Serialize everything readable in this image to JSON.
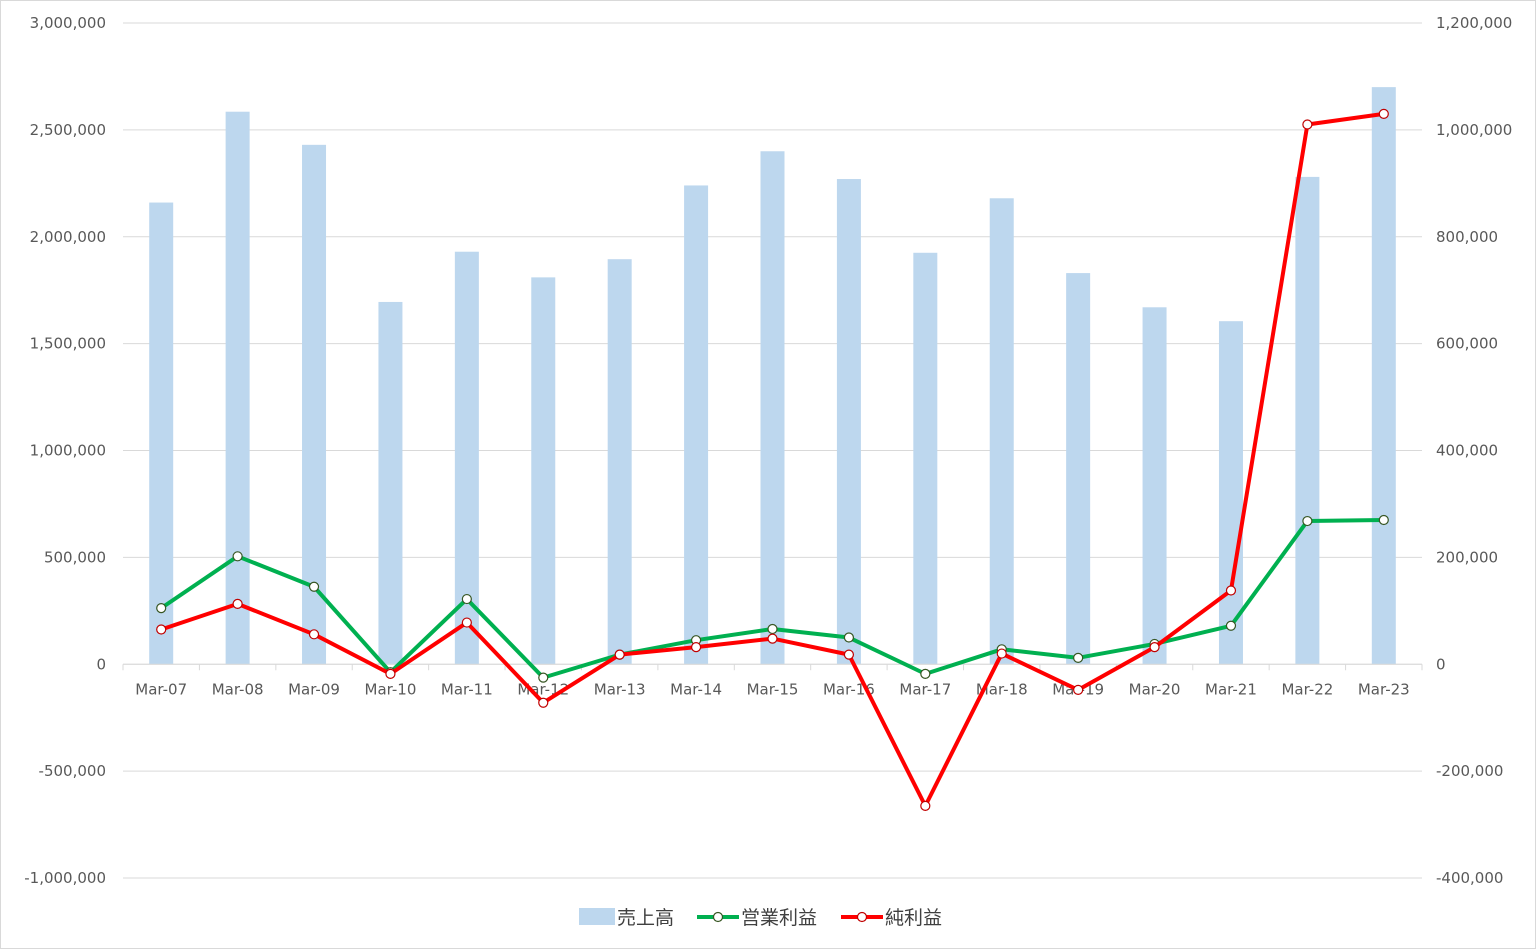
{
  "chart_data": {
    "type": "bar",
    "categories": [
      "Mar-07",
      "Mar-08",
      "Mar-09",
      "Mar-10",
      "Mar-11",
      "Mar-12",
      "Mar-13",
      "Mar-14",
      "Mar-15",
      "Mar-16",
      "Mar-17",
      "Mar-18",
      "Mar-19",
      "Mar-20",
      "Mar-21",
      "Mar-22",
      "Mar-23"
    ],
    "series": [
      {
        "name": "売上高",
        "type": "bar",
        "axis": "left",
        "color": "#bdd7ee",
        "values": [
          2160000,
          2585000,
          2430000,
          1695000,
          1930000,
          1810000,
          1895000,
          2240000,
          2400000,
          2270000,
          1925000,
          2180000,
          1830000,
          1670000,
          1605000,
          2280000,
          2700000
        ]
      },
      {
        "name": "営業利益",
        "type": "line",
        "axis": "right",
        "color": "#00b050",
        "marker": "circle",
        "values": [
          105000,
          202000,
          145000,
          -15000,
          122000,
          -25000,
          18000,
          45000,
          66000,
          50000,
          -18000,
          28000,
          12000,
          38000,
          72000,
          268000,
          270000
        ]
      },
      {
        "name": "純利益",
        "type": "line",
        "axis": "right",
        "color": "#ff0000",
        "marker": "circle",
        "values": [
          65000,
          113000,
          56000,
          -18000,
          78000,
          -72000,
          18000,
          32000,
          48000,
          18000,
          -265000,
          20000,
          -48000,
          32000,
          138000,
          1010000,
          1030000
        ]
      }
    ],
    "left_axis": {
      "ylim": [
        -1000000,
        3000000
      ],
      "ticks": [
        -1000000,
        -500000,
        0,
        500000,
        1000000,
        1500000,
        2000000,
        2500000,
        3000000
      ],
      "tick_labels": [
        "-1,000,000",
        "-500,000",
        "0",
        "500,000",
        "1,000,000",
        "1,500,000",
        "2,000,000",
        "2,500,000",
        "3,000,000"
      ]
    },
    "right_axis": {
      "ylim": [
        -400000,
        1200000
      ],
      "ticks": [
        -400000,
        -200000,
        0,
        200000,
        400000,
        600000,
        800000,
        1000000,
        1200000
      ],
      "tick_labels": [
        "-400,000",
        "-200,000",
        "0",
        "200,000",
        "400,000",
        "600,000",
        "800,000",
        "1,000,000",
        "1,200,000"
      ]
    },
    "grid": true,
    "legend": "bottom",
    "title": "",
    "xlabel": "",
    "ylabel": ""
  }
}
